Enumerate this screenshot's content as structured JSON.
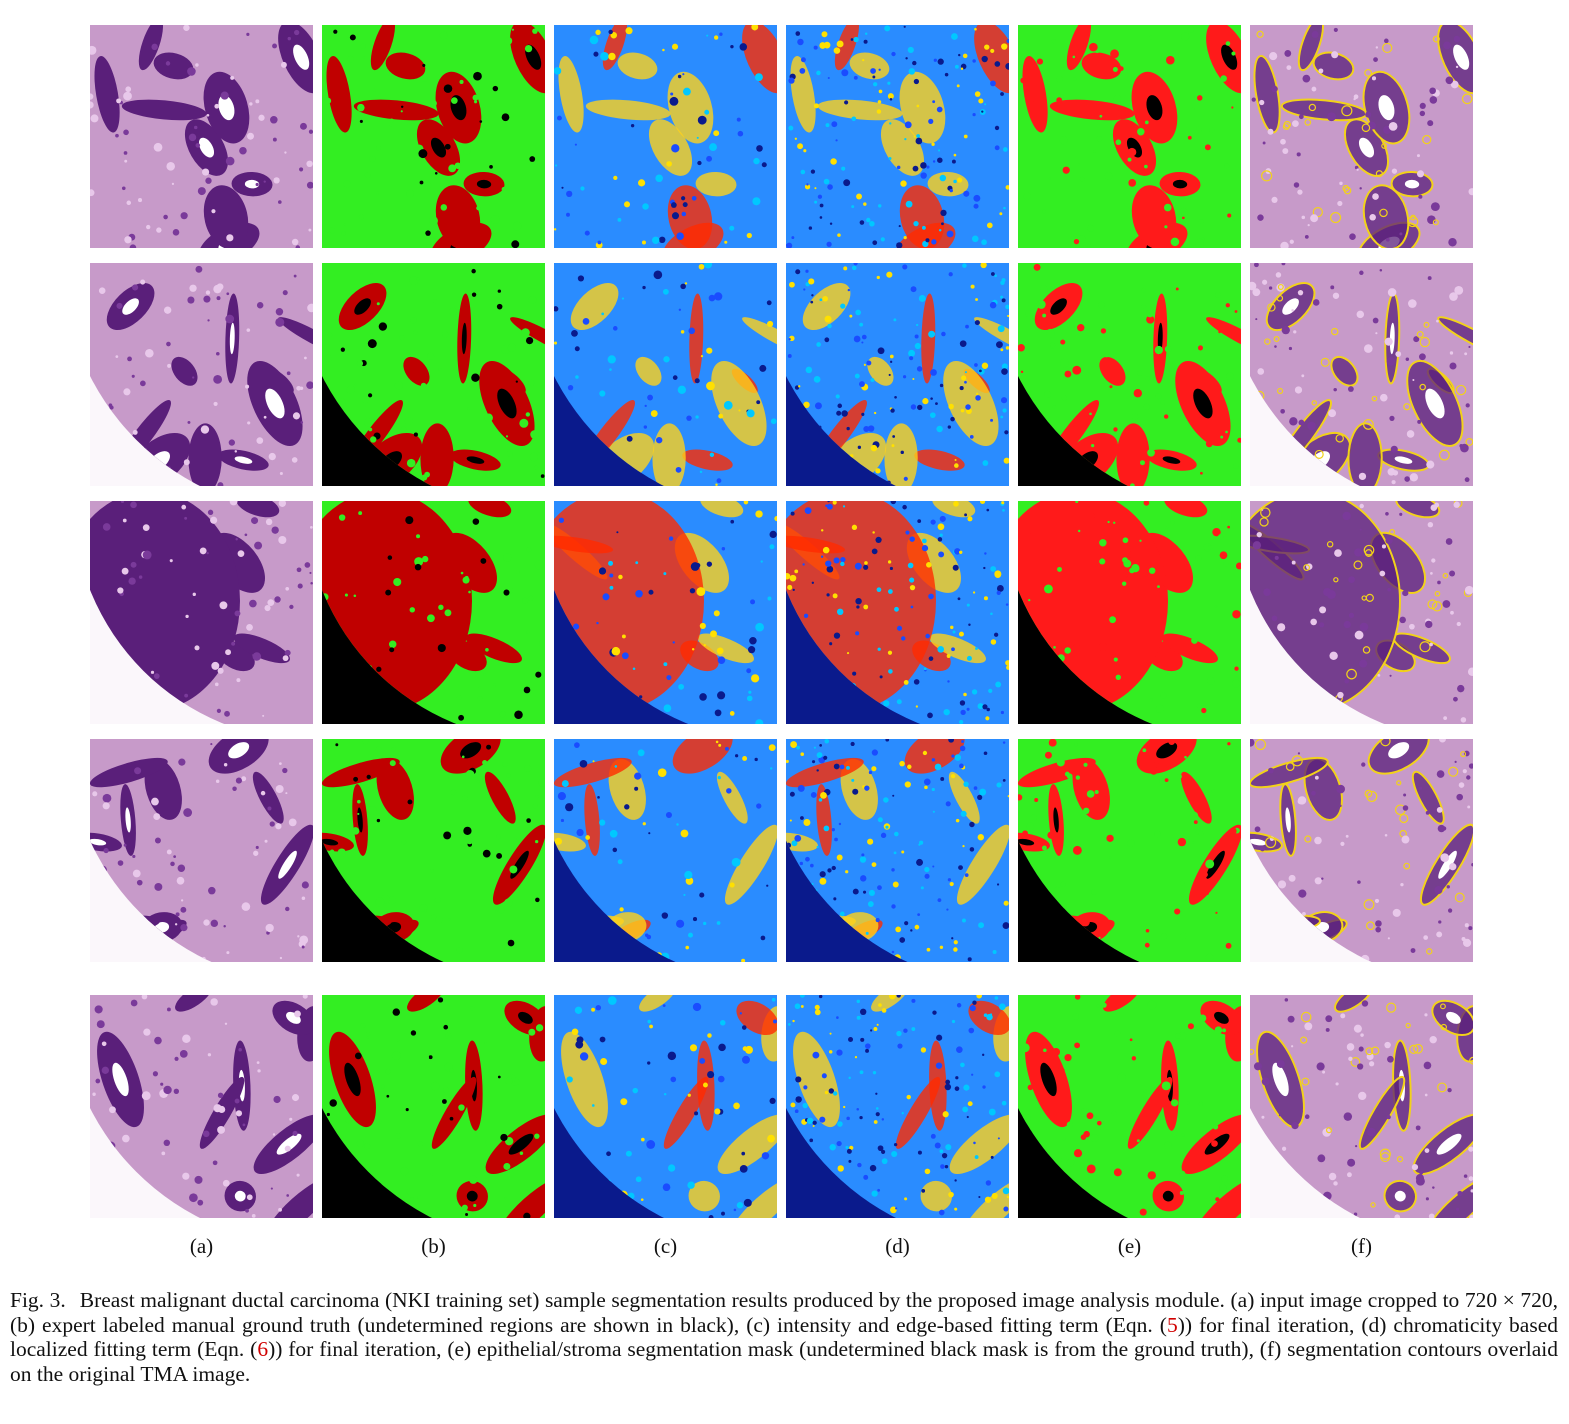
{
  "figure": {
    "sub_labels": [
      "(a)",
      "(b)",
      "(c)",
      "(d)",
      "(e)",
      "(f)"
    ],
    "columns": [
      "input-image",
      "ground-truth",
      "intensity-fitting",
      "chromaticity-fitting",
      "segmentation-mask",
      "contour-overlay"
    ],
    "rows": 5,
    "colors": {
      "stroma": "#33ee22",
      "epithelium_gt": "#c00000",
      "epithelium_mask": "#ff1a1a",
      "undetermined": "#000000",
      "heat_low": "#0a1a8c",
      "heat_mid": "#2a8cff",
      "heat_high": "#ff2a00",
      "tissue": "#c79ac9",
      "nuclei": "#5a1f7a",
      "contour": "#f2d21a"
    }
  },
  "caption": {
    "label": "Fig. 3.",
    "part1": "Breast malignant ductal carcinoma (NKI training set) sample segmentation results produced by the proposed image analysis module. (a) input image cropped to 720 × 720, (b) expert labeled manual ground truth (undetermined regions are shown in black), (c) intensity and edge-based fitting term (Eqn. (",
    "ref1": "5",
    "part2": ")) for final iteration, (d) chromaticity based localized fitting term (Eqn. (",
    "ref2": "6",
    "part3": ")) for final iteration, (e) epithelial/stroma segmentation mask (undetermined black mask is from the ground truth), (f) segmentation contours overlaid on the original TMA image."
  }
}
